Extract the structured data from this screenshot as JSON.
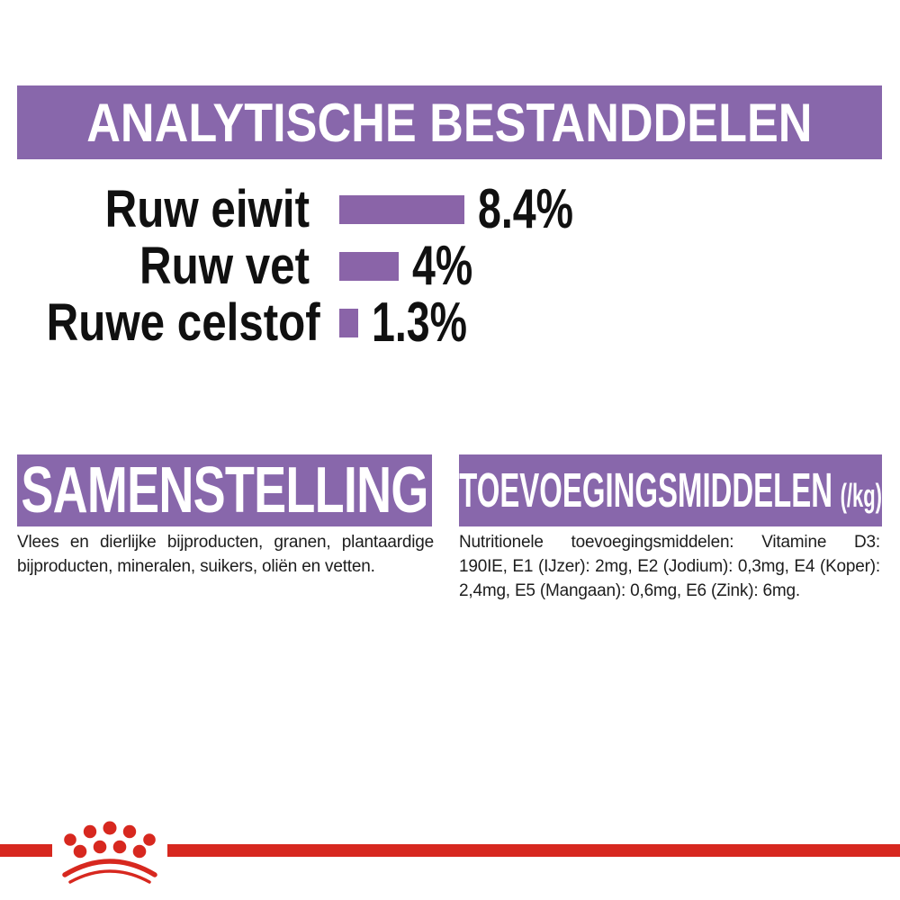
{
  "header": {
    "title": "ANALYTISCHE BESTANDDELEN"
  },
  "chart_data": {
    "type": "bar",
    "orientation": "horizontal",
    "categories": [
      "Ruw eiwit",
      "Ruw vet",
      "Ruwe celstof"
    ],
    "values": [
      8.4,
      4,
      1.3
    ],
    "display_labels": [
      "8.4%",
      "4%",
      "1.3%"
    ],
    "unit": "%",
    "xlim": [
      0,
      10
    ],
    "bar_color": "#8a64a8",
    "legend": "none",
    "grid": "off"
  },
  "sections": {
    "samenstelling": {
      "title": "SAMENSTELLING",
      "body_lines": [
        "Vlees en dierlijke bijproducten, granen, plantaardige",
        "bijproducten, mineralen, suikers, oliën en vetten."
      ]
    },
    "toevoegingsmiddelen": {
      "title": "TOEVOEGINGSMIDDELEN",
      "title_suffix": "(/kg)",
      "body_lines": [
        "Nutritionele toevoegingsmiddelen: Vitamine D3:",
        "190IE, E1 (IJzer): 2mg, E2 (Jodium): 0,3mg, E4 (Koper):",
        "2,4mg, E5 (Mangaan): 0,6mg, E6 (Zink): 6mg."
      ]
    }
  },
  "footer": {
    "logo_icon": "royal-canin-crown-icon"
  },
  "colors": {
    "banner_purple": "#8867ab",
    "bar_purple": "#8a64a8",
    "accent_red": "#d7281f",
    "text_black": "#101010"
  }
}
